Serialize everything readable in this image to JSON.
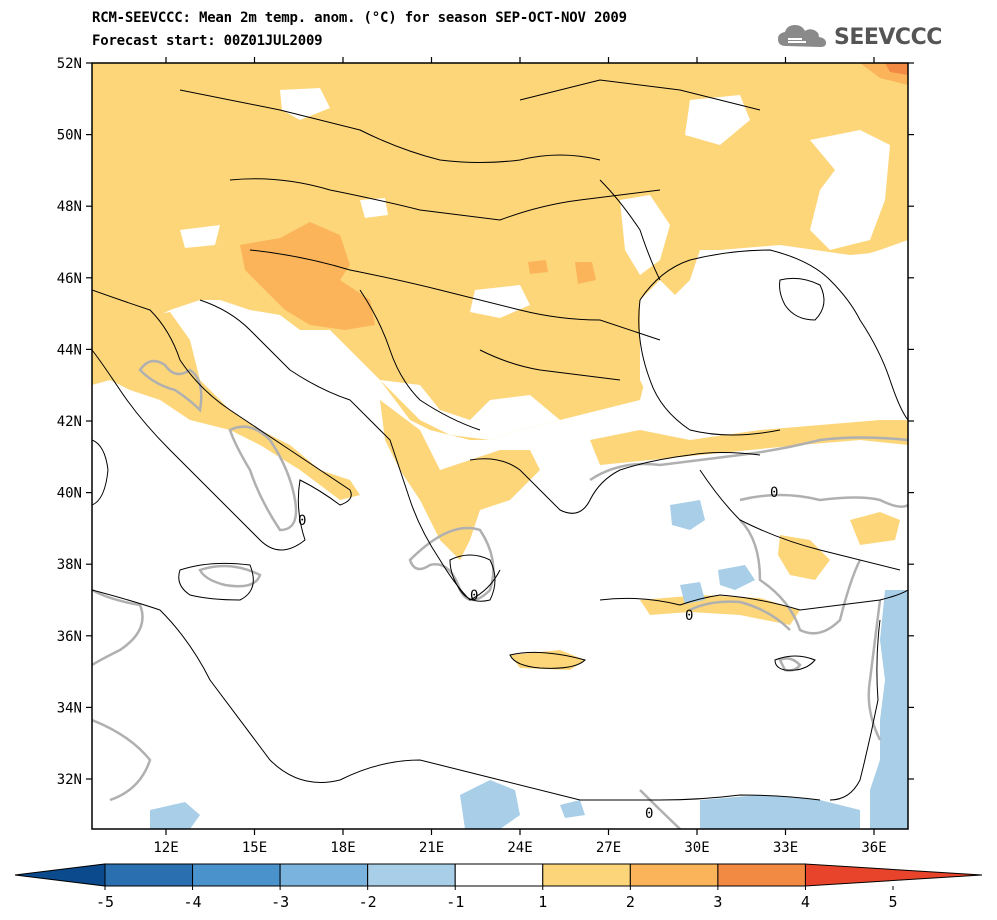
{
  "header": {
    "line1": "RCM-SEEVCCC: Mean 2m temp. anom. (°C) for season SEP-OCT-NOV 2009",
    "line2": "Forecast start: 00Z01JUL2009",
    "logo_text": "SEEVCCC",
    "logo_icon": "cloud-icon"
  },
  "axes": {
    "lat_labels": [
      "52N",
      "50N",
      "48N",
      "46N",
      "44N",
      "42N",
      "40N",
      "38N",
      "36N",
      "34N",
      "32N"
    ],
    "lon_labels": [
      "12E",
      "15E",
      "18E",
      "21E",
      "24E",
      "27E",
      "30E",
      "33E",
      "36E"
    ]
  },
  "contour_labels": [
    "0",
    "0",
    "0",
    "0",
    "0"
  ],
  "colorbar": {
    "labels": [
      "-5",
      "-4",
      "-3",
      "-2",
      "-1",
      "1",
      "2",
      "3",
      "4",
      "5"
    ],
    "colors": [
      "#0b4a8c",
      "#2a6fb0",
      "#4a92cc",
      "#7ab3de",
      "#a8cee8",
      "#ffffff",
      "#fcd57a",
      "#fbb45a",
      "#f28a44",
      "#e8432b"
    ]
  },
  "colors": {
    "warm1": "#fdd67a",
    "warm2": "#fbb45a",
    "warm3": "#f28a44",
    "warm4": "#e8432b",
    "cool1": "#a8cee8",
    "contour": "#b0b0b0",
    "border": "#000000"
  }
}
